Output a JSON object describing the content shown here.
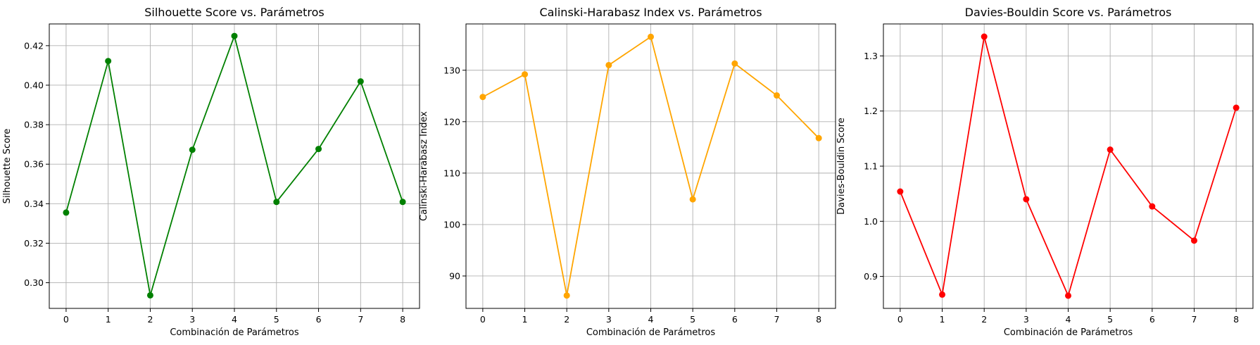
{
  "chart_data": [
    {
      "type": "line",
      "title": "Silhouette Score vs. Parámetros",
      "xlabel": "Combinación de Parámetros",
      "ylabel": "Silhouette Score",
      "x": [
        0,
        1,
        2,
        3,
        4,
        5,
        6,
        7,
        8
      ],
      "series": [
        {
          "values": [
            0.3355,
            0.4122,
            0.2936,
            0.3673,
            0.4249,
            0.3409,
            0.3677,
            0.4019,
            0.3409
          ],
          "color": "#008000"
        }
      ],
      "xlim": [
        -0.4,
        8.4
      ],
      "ylim": [
        0.287,
        0.431
      ],
      "yticks": [
        0.3,
        0.32,
        0.34,
        0.36,
        0.38,
        0.4,
        0.42
      ],
      "ytick_labels": [
        "0.30",
        "0.32",
        "0.34",
        "0.36",
        "0.38",
        "0.40",
        "0.42"
      ],
      "grid": true,
      "marker": "circle"
    },
    {
      "type": "line",
      "title": "Calinski-Harabasz Index vs. Parámetros",
      "xlabel": "Combinación de Parámetros",
      "ylabel": "Calinski-Harabasz Index",
      "x": [
        0,
        1,
        2,
        3,
        4,
        5,
        6,
        7,
        8
      ],
      "series": [
        {
          "values": [
            124.8,
            129.2,
            86.2,
            131.0,
            136.5,
            104.9,
            131.3,
            125.1,
            116.8
          ],
          "color": "#FFA500"
        }
      ],
      "xlim": [
        -0.4,
        8.4
      ],
      "ylim": [
        83.7,
        139.0
      ],
      "yticks": [
        90,
        100,
        110,
        120,
        130
      ],
      "ytick_labels": [
        "90",
        "100",
        "110",
        "120",
        "130"
      ],
      "grid": true,
      "marker": "circle"
    },
    {
      "type": "line",
      "title": "Davies-Bouldin Score vs. Parámetros",
      "xlabel": "Combinación de Parámetros",
      "ylabel": "Davies-Bouldin Score",
      "x": [
        0,
        1,
        2,
        3,
        4,
        5,
        6,
        7,
        8
      ],
      "series": [
        {
          "values": [
            1.054,
            0.867,
            1.335,
            1.04,
            0.865,
            1.13,
            1.027,
            0.965,
            1.206
          ],
          "color": "#FF0000"
        }
      ],
      "xlim": [
        -0.4,
        8.4
      ],
      "ylim": [
        0.842,
        1.358
      ],
      "yticks": [
        0.9,
        1.0,
        1.1,
        1.2,
        1.3
      ],
      "ytick_labels": [
        "0.9",
        "1.0",
        "1.1",
        "1.2",
        "1.3"
      ],
      "grid": true,
      "marker": "circle"
    }
  ]
}
